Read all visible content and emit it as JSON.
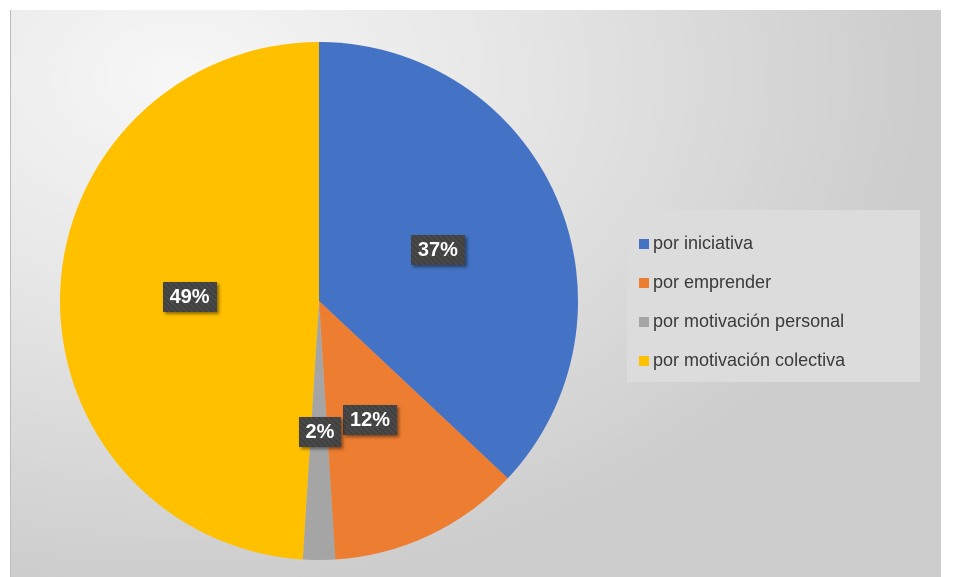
{
  "chart_data": {
    "type": "pie",
    "categories": [
      "por iniciativa",
      "por emprender",
      "por motivación personal",
      "por motivación colectiva"
    ],
    "values": [
      37,
      12,
      2,
      49
    ],
    "labels": [
      "37%",
      "12%",
      "2%",
      "49%"
    ],
    "colors": [
      "#4472C4",
      "#ED7D31",
      "#A5A5A5",
      "#FFC000"
    ],
    "start_angle_deg": 0,
    "direction": "clockwise",
    "legend_position": "right",
    "data_label_style": "dark boxes with white bold text"
  }
}
